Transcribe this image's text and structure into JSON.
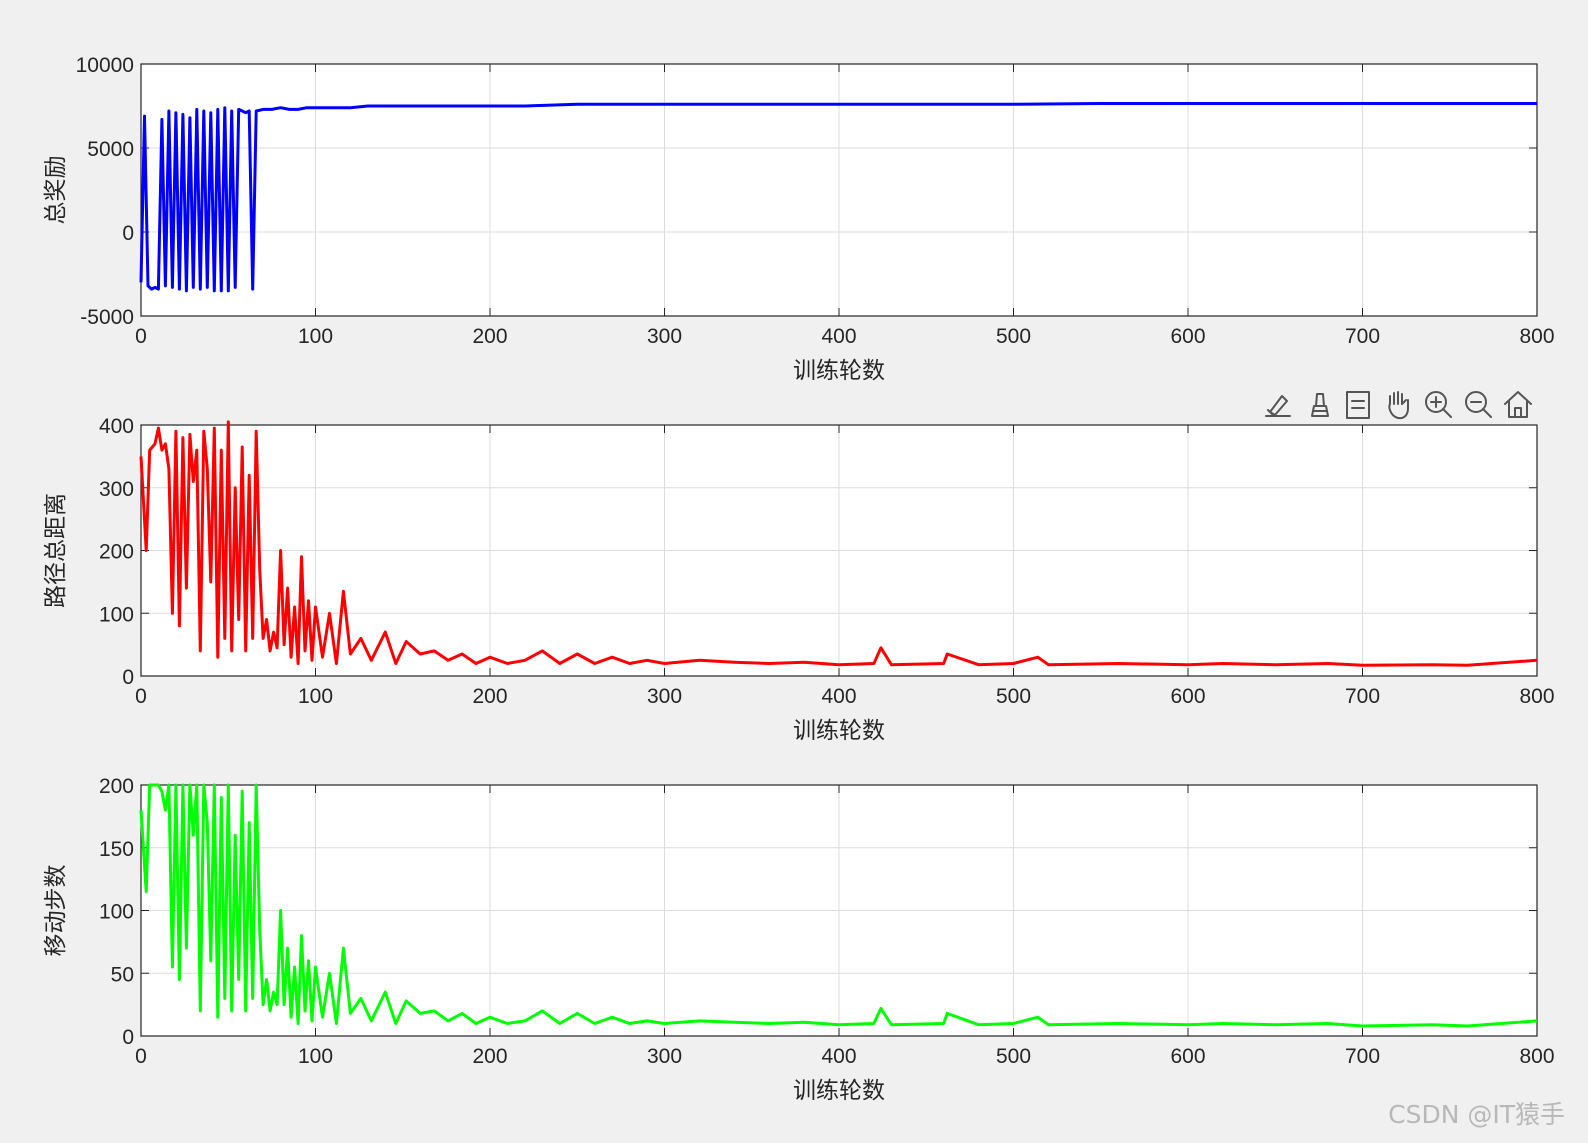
{
  "toolbar": {
    "icons": [
      "brush-icon",
      "data-tips-icon",
      "legend-icon",
      "pan-hand-icon",
      "zoom-in-icon",
      "zoom-out-icon",
      "home-icon"
    ]
  },
  "watermark": "CSDN @IT猿手",
  "chart_data": [
    {
      "type": "line",
      "title": "",
      "xlabel": "训练轮数",
      "ylabel": "总奖励",
      "xlim": [
        0,
        800
      ],
      "ylim": [
        -5000,
        10000
      ],
      "xticks": [
        "0",
        "100",
        "200",
        "300",
        "400",
        "500",
        "600",
        "700",
        "800"
      ],
      "yticks": [
        "-5000",
        "0",
        "5000",
        "10000"
      ],
      "grid": true,
      "color": "#0000ff",
      "series": [
        {
          "x": [
            0,
            2,
            4,
            6,
            8,
            10,
            12,
            14,
            16,
            18,
            20,
            22,
            24,
            26,
            28,
            30,
            32,
            34,
            36,
            38,
            40,
            42,
            44,
            46,
            48,
            50,
            52,
            54,
            56,
            58,
            60,
            62,
            64,
            66,
            70,
            75,
            80,
            85,
            90,
            95,
            100,
            110,
            120,
            130,
            140,
            150,
            160,
            180,
            200,
            220,
            250,
            280,
            300,
            350,
            400,
            450,
            500,
            550,
            600,
            650,
            700,
            750,
            800
          ],
          "y": [
            -3000,
            6900,
            -3200,
            -3400,
            -3300,
            -3400,
            6700,
            -3200,
            7200,
            -3300,
            7100,
            -3400,
            7000,
            -3500,
            6800,
            -3300,
            7300,
            -3400,
            7200,
            -3300,
            7100,
            -3500,
            7300,
            -3500,
            7400,
            -3500,
            7200,
            -3300,
            7300,
            7200,
            7100,
            7200,
            -3400,
            7200,
            7300,
            7300,
            7400,
            7300,
            7300,
            7400,
            7400,
            7400,
            7400,
            7500,
            7500,
            7500,
            7500,
            7500,
            7500,
            7500,
            7600,
            7600,
            7600,
            7600,
            7600,
            7600,
            7600,
            7650,
            7650,
            7650,
            7650,
            7650,
            7650
          ]
        }
      ]
    },
    {
      "type": "line",
      "title": "",
      "xlabel": "训练轮数",
      "ylabel": "路径总距离",
      "xlim": [
        0,
        800
      ],
      "ylim": [
        0,
        400
      ],
      "xticks": [
        "0",
        "100",
        "200",
        "300",
        "400",
        "500",
        "600",
        "700",
        "800"
      ],
      "yticks": [
        "0",
        "100",
        "200",
        "300",
        "400"
      ],
      "grid": true,
      "color": "#ff0000",
      "series": [
        {
          "x": [
            0,
            3,
            5,
            8,
            10,
            12,
            14,
            16,
            18,
            20,
            22,
            24,
            26,
            28,
            30,
            32,
            34,
            36,
            38,
            40,
            42,
            44,
            46,
            48,
            50,
            52,
            54,
            56,
            58,
            60,
            62,
            64,
            66,
            68,
            70,
            72,
            74,
            76,
            78,
            80,
            82,
            84,
            86,
            88,
            90,
            92,
            94,
            96,
            98,
            100,
            104,
            108,
            112,
            116,
            120,
            126,
            132,
            140,
            146,
            152,
            160,
            168,
            176,
            184,
            192,
            200,
            210,
            220,
            230,
            240,
            250,
            260,
            270,
            280,
            290,
            300,
            320,
            340,
            360,
            380,
            400,
            420,
            424,
            430,
            460,
            462,
            480,
            500,
            514,
            520,
            560,
            600,
            620,
            650,
            680,
            700,
            740,
            760,
            800
          ],
          "y": [
            350,
            200,
            360,
            370,
            395,
            360,
            370,
            330,
            100,
            390,
            80,
            380,
            140,
            385,
            310,
            360,
            40,
            390,
            330,
            150,
            395,
            30,
            360,
            60,
            405,
            40,
            300,
            90,
            365,
            40,
            320,
            60,
            390,
            170,
            60,
            90,
            40,
            70,
            45,
            200,
            50,
            140,
            30,
            110,
            20,
            190,
            40,
            120,
            25,
            110,
            30,
            100,
            20,
            135,
            35,
            60,
            25,
            70,
            20,
            55,
            35,
            40,
            25,
            35,
            20,
            30,
            20,
            25,
            40,
            20,
            35,
            20,
            30,
            20,
            25,
            20,
            25,
            22,
            20,
            22,
            18,
            20,
            45,
            18,
            20,
            35,
            18,
            20,
            30,
            18,
            20,
            18,
            20,
            18,
            20,
            17,
            18,
            17,
            25
          ]
        }
      ]
    },
    {
      "type": "line",
      "title": "",
      "xlabel": "训练轮数",
      "ylabel": "移动步数",
      "xlim": [
        0,
        800
      ],
      "ylim": [
        0,
        200
      ],
      "xticks": [
        "0",
        "100",
        "200",
        "300",
        "400",
        "500",
        "600",
        "700",
        "800"
      ],
      "yticks": [
        "0",
        "50",
        "100",
        "150",
        "200"
      ],
      "grid": true,
      "color": "#00ff00",
      "series": [
        {
          "x": [
            0,
            3,
            5,
            8,
            10,
            12,
            14,
            16,
            18,
            20,
            22,
            24,
            26,
            28,
            30,
            32,
            34,
            36,
            38,
            40,
            42,
            44,
            46,
            48,
            50,
            52,
            54,
            56,
            58,
            60,
            62,
            64,
            66,
            68,
            70,
            72,
            74,
            76,
            78,
            80,
            82,
            84,
            86,
            88,
            90,
            92,
            94,
            96,
            98,
            100,
            104,
            108,
            112,
            116,
            120,
            126,
            132,
            140,
            146,
            152,
            160,
            168,
            176,
            184,
            192,
            200,
            210,
            220,
            230,
            240,
            250,
            260,
            270,
            280,
            290,
            300,
            320,
            340,
            360,
            380,
            400,
            420,
            424,
            430,
            460,
            462,
            480,
            500,
            514,
            520,
            560,
            600,
            620,
            650,
            680,
            700,
            740,
            760,
            800
          ],
          "y": [
            180,
            115,
            200,
            200,
            200,
            195,
            180,
            200,
            55,
            200,
            45,
            200,
            70,
            200,
            160,
            200,
            20,
            200,
            170,
            60,
            200,
            15,
            190,
            30,
            200,
            20,
            160,
            45,
            195,
            20,
            170,
            30,
            200,
            85,
            25,
            45,
            20,
            35,
            25,
            100,
            25,
            70,
            15,
            55,
            10,
            80,
            20,
            60,
            12,
            55,
            15,
            50,
            10,
            70,
            18,
            30,
            12,
            35,
            10,
            28,
            18,
            20,
            12,
            18,
            10,
            15,
            10,
            12,
            20,
            10,
            18,
            10,
            15,
            10,
            12,
            10,
            12,
            11,
            10,
            11,
            9,
            10,
            22,
            9,
            10,
            18,
            9,
            10,
            15,
            9,
            10,
            9,
            10,
            9,
            10,
            8,
            9,
            8,
            12
          ]
        }
      ]
    }
  ]
}
